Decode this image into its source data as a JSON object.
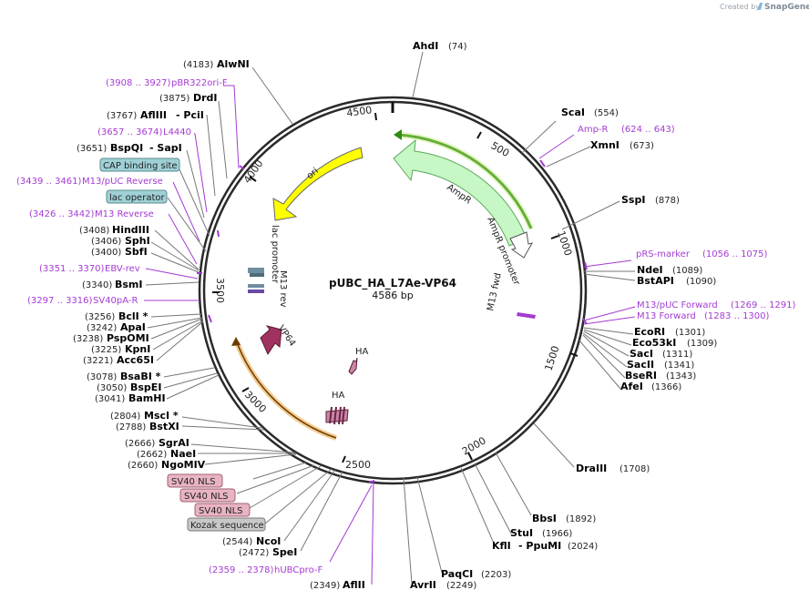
{
  "credit": {
    "prefix": "Created by",
    "brand": "SnapGene"
  },
  "plasmid": {
    "name": "pUBC_HA_L7Ae-VP64",
    "length": "4586 bp"
  },
  "ticks": [
    "500",
    "1000",
    "1500",
    "2000",
    "2500",
    "3000",
    "3500",
    "4000",
    "4500"
  ],
  "features": {
    "ampr": "AmpR",
    "ampr_promoter": "AmpR promoter",
    "ori": "ori",
    "lac_promoter": "lac promoter",
    "m13_rev": "M13 rev",
    "m13_fwd": "M13 fwd",
    "vp64": "VP64",
    "ha_1": "HA",
    "ha_2": "HA"
  },
  "right_labels": [
    {
      "name": "AhdI",
      "pos": "(74)"
    },
    {
      "name": "ScaI",
      "pos": "(554)"
    },
    {
      "name": "Amp-R",
      "pos": "(624 .. 643)"
    },
    {
      "name": "XmnI",
      "pos": "(673)"
    },
    {
      "name": "SspI",
      "pos": "(878)"
    },
    {
      "name": "pRS-marker",
      "pos": "(1056 .. 1075)"
    },
    {
      "name": "NdeI",
      "pos": "(1089)"
    },
    {
      "name": "BstAPI",
      "pos": "(1090)"
    },
    {
      "name": "M13/pUC Forward",
      "pos": "(1269 .. 1291)"
    },
    {
      "name": "M13 Forward",
      "pos": "(1283 .. 1300)"
    },
    {
      "name": "EcoRI",
      "pos": "(1301)"
    },
    {
      "name": "Eco53kI",
      "pos": "(1309)"
    },
    {
      "name": "SacI",
      "pos": "(1311)"
    },
    {
      "name": "SacII",
      "pos": "(1341)"
    },
    {
      "name": "BseRI",
      "pos": "(1343)"
    },
    {
      "name": "AfeI",
      "pos": "(1366)"
    },
    {
      "name": "DraIII",
      "pos": "(1708)"
    },
    {
      "name": "BbsI",
      "pos": "(1892)"
    },
    {
      "name": "StuI",
      "pos": "(1966)"
    },
    {
      "name": "KflI",
      "mid": "- PpuMI",
      "pos": "(2024)"
    },
    {
      "name": "PaqCI",
      "pos": "(2203)"
    },
    {
      "name": "AvrII",
      "pos": "(2249)"
    },
    {
      "name": "AflII",
      "pos": "(2349)"
    }
  ],
  "left_labels": [
    {
      "name": "AlwNI",
      "pos": "(4183)"
    },
    {
      "name": "pBR322ori-F",
      "pos": "(3908 .. 3927)"
    },
    {
      "name": "DrdI",
      "pos": "(3875)"
    },
    {
      "name": "AflIII",
      "mid": "- PciI",
      "pos": "(3767)"
    },
    {
      "name": "L4440",
      "pos": "(3657 .. 3674)"
    },
    {
      "name": "BspQI",
      "mid": "- SapI",
      "pos": "(3651)"
    },
    {
      "name": "CAP binding site"
    },
    {
      "name": "M13/pUC Reverse",
      "pos": "(3439 .. 3461)"
    },
    {
      "name": "lac operator"
    },
    {
      "name": "M13 Reverse",
      "pos": "(3426 .. 3442)"
    },
    {
      "name": "HindIII",
      "pos": "(3408)"
    },
    {
      "name": "SphI",
      "pos": "(3406)"
    },
    {
      "name": "SbfI",
      "pos": "(3400)"
    },
    {
      "name": "EBV-rev",
      "pos": "(3351 .. 3370)"
    },
    {
      "name": "BsmI",
      "pos": "(3340)"
    },
    {
      "name": "SV40pA-R",
      "pos": "(3297 .. 3316)"
    },
    {
      "name": "BclI *",
      "pos": "(3256)"
    },
    {
      "name": "ApaI",
      "pos": "(3242)"
    },
    {
      "name": "PspOMI",
      "pos": "(3238)"
    },
    {
      "name": "KpnI",
      "pos": "(3225)"
    },
    {
      "name": "Acc65I",
      "pos": "(3221)"
    },
    {
      "name": "BsaBI *",
      "pos": "(3078)"
    },
    {
      "name": "BspEI",
      "pos": "(3050)"
    },
    {
      "name": "BamHI",
      "pos": "(3041)"
    },
    {
      "name": "MscI *",
      "pos": "(2804)"
    },
    {
      "name": "BstXI",
      "pos": "(2788)"
    },
    {
      "name": "SgrAI",
      "pos": "(2666)"
    },
    {
      "name": "NaeI",
      "pos": "(2662)"
    },
    {
      "name": "NgoMIV",
      "pos": "(2660)"
    },
    {
      "name": "SV40 NLS"
    },
    {
      "name": "SV40 NLS"
    },
    {
      "name": "SV40 NLS"
    },
    {
      "name": "Kozak sequence"
    },
    {
      "name": "NcoI",
      "pos": "(2544)"
    },
    {
      "name": "SpeI",
      "pos": "(2472)"
    },
    {
      "name": "hUBCpro-F",
      "pos": "(2359 .. 2378)"
    }
  ],
  "colors": {
    "ampr": "#c6f7c4",
    "ampr_stroke": "#5da85a",
    "ori": "#ffff00",
    "vp64": "#a0325f",
    "ha": "#c987a8",
    "primer": "#a43bd3",
    "orange_arc": "#e9a23b",
    "green_arc": "#2e8b12",
    "cap_box": "#9fd0d6",
    "nls_box": "#e8b4c3",
    "kozak_box": "#c8c8c8"
  }
}
